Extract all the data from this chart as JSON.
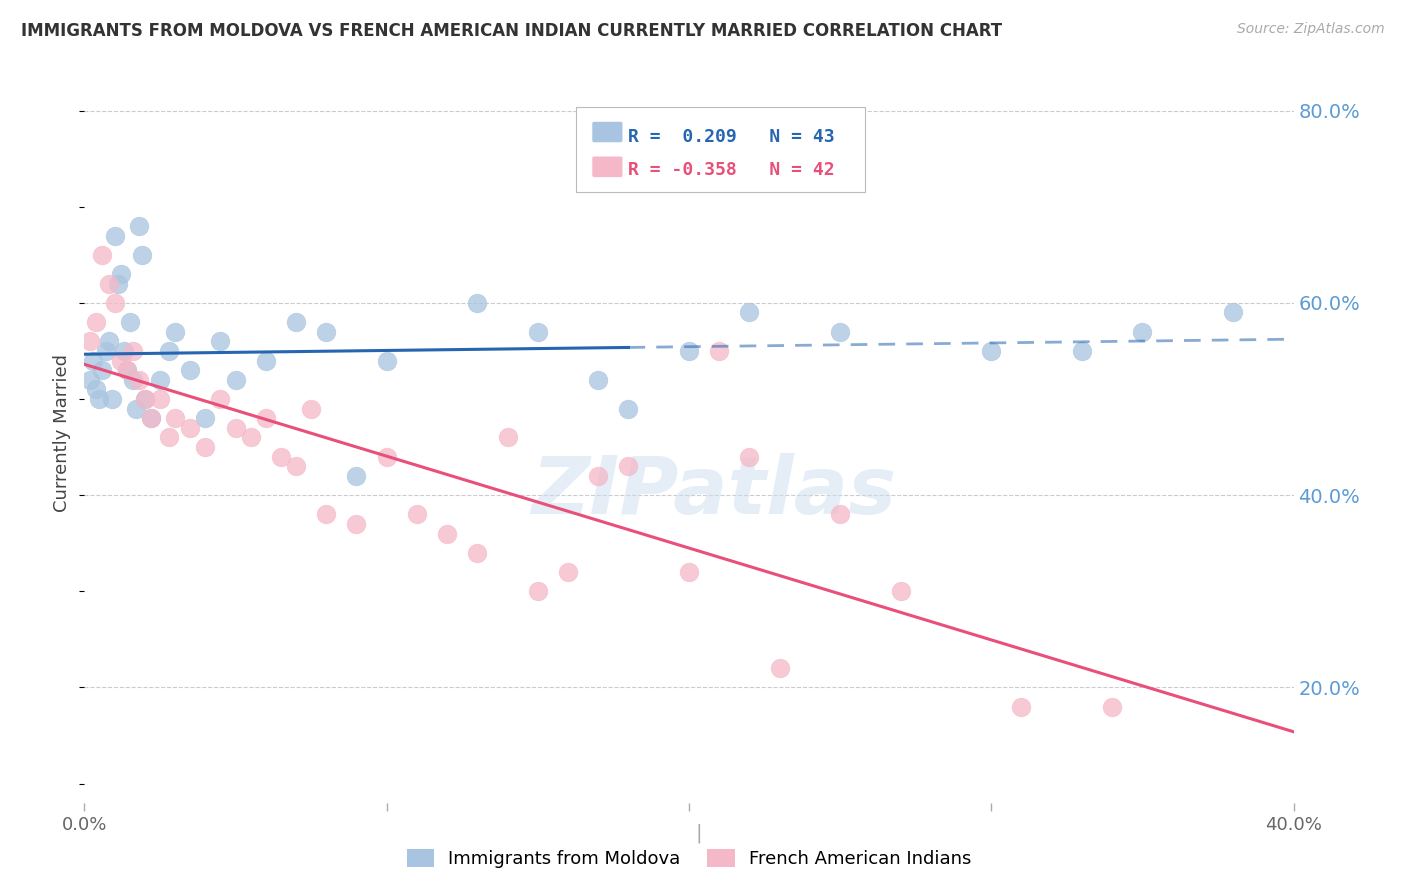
{
  "title": "IMMIGRANTS FROM MOLDOVA VS FRENCH AMERICAN INDIAN CURRENTLY MARRIED CORRELATION CHART",
  "source": "Source: ZipAtlas.com",
  "ylabel": "Currently Married",
  "xmin": 0.0,
  "xmax": 0.4,
  "ymin": 0.08,
  "ymax": 0.85,
  "blue_R": 0.209,
  "blue_N": 43,
  "pink_R": -0.358,
  "pink_N": 42,
  "blue_color": "#a8c4e0",
  "pink_color": "#f5b8c8",
  "blue_line_color": "#2666b0",
  "pink_line_color": "#e8507a",
  "legend_label_blue": "Immigrants from Moldova",
  "legend_label_pink": "French American Indians",
  "watermark": "ZIPatlas",
  "blue_line_solid_end": 0.18,
  "blue_dots_x": [
    0.002,
    0.003,
    0.004,
    0.005,
    0.006,
    0.007,
    0.008,
    0.009,
    0.01,
    0.011,
    0.012,
    0.013,
    0.014,
    0.015,
    0.016,
    0.017,
    0.018,
    0.019,
    0.02,
    0.022,
    0.025,
    0.028,
    0.03,
    0.035,
    0.04,
    0.045,
    0.05,
    0.06,
    0.07,
    0.08,
    0.09,
    0.1,
    0.13,
    0.15,
    0.17,
    0.18,
    0.2,
    0.22,
    0.25,
    0.3,
    0.33,
    0.35,
    0.38
  ],
  "blue_dots_y": [
    0.52,
    0.54,
    0.51,
    0.5,
    0.53,
    0.55,
    0.56,
    0.5,
    0.67,
    0.62,
    0.63,
    0.55,
    0.53,
    0.58,
    0.52,
    0.49,
    0.68,
    0.65,
    0.5,
    0.48,
    0.52,
    0.55,
    0.57,
    0.53,
    0.48,
    0.56,
    0.52,
    0.54,
    0.58,
    0.57,
    0.42,
    0.54,
    0.6,
    0.57,
    0.52,
    0.49,
    0.55,
    0.59,
    0.57,
    0.55,
    0.55,
    0.57,
    0.59
  ],
  "pink_dots_x": [
    0.002,
    0.004,
    0.006,
    0.008,
    0.01,
    0.012,
    0.014,
    0.016,
    0.018,
    0.02,
    0.022,
    0.025,
    0.028,
    0.03,
    0.035,
    0.04,
    0.045,
    0.05,
    0.055,
    0.06,
    0.065,
    0.07,
    0.075,
    0.08,
    0.09,
    0.1,
    0.11,
    0.12,
    0.13,
    0.14,
    0.15,
    0.16,
    0.17,
    0.18,
    0.2,
    0.21,
    0.22,
    0.23,
    0.25,
    0.27,
    0.31,
    0.34
  ],
  "pink_dots_y": [
    0.56,
    0.58,
    0.65,
    0.62,
    0.6,
    0.54,
    0.53,
    0.55,
    0.52,
    0.5,
    0.48,
    0.5,
    0.46,
    0.48,
    0.47,
    0.45,
    0.5,
    0.47,
    0.46,
    0.48,
    0.44,
    0.43,
    0.49,
    0.38,
    0.37,
    0.44,
    0.38,
    0.36,
    0.34,
    0.46,
    0.3,
    0.32,
    0.42,
    0.43,
    0.32,
    0.55,
    0.44,
    0.22,
    0.38,
    0.3,
    0.18,
    0.18
  ]
}
